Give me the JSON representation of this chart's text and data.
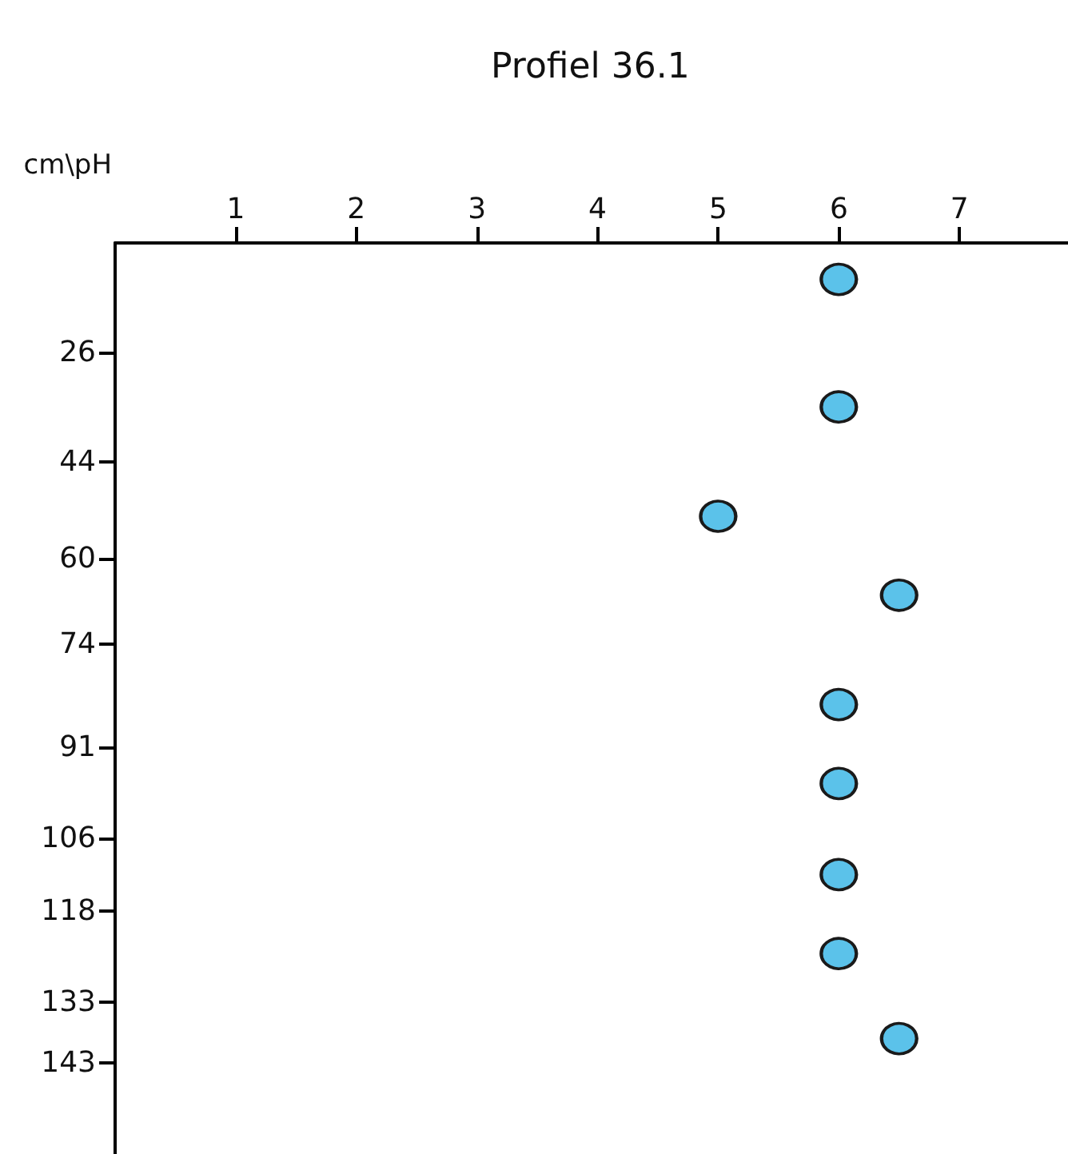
{
  "chart_data": {
    "type": "scatter",
    "title": "Profiel 36.1",
    "ylabel": "cm\\pH",
    "x": [
      6,
      6,
      5,
      6.5,
      6,
      6,
      6,
      6,
      6.5
    ],
    "values": [
      14,
      35,
      53,
      66,
      84,
      97,
      112,
      125,
      139
    ],
    "color": "#5bc2ea",
    "marker": "circle",
    "xlim": [
      0,
      7.9
    ],
    "xticks": [
      1,
      2,
      3,
      4,
      5,
      6,
      7
    ],
    "ylim": [
      158,
      8
    ],
    "yticks": [
      26,
      44,
      60,
      74,
      91,
      106,
      118,
      133,
      143
    ],
    "grid": false
  }
}
